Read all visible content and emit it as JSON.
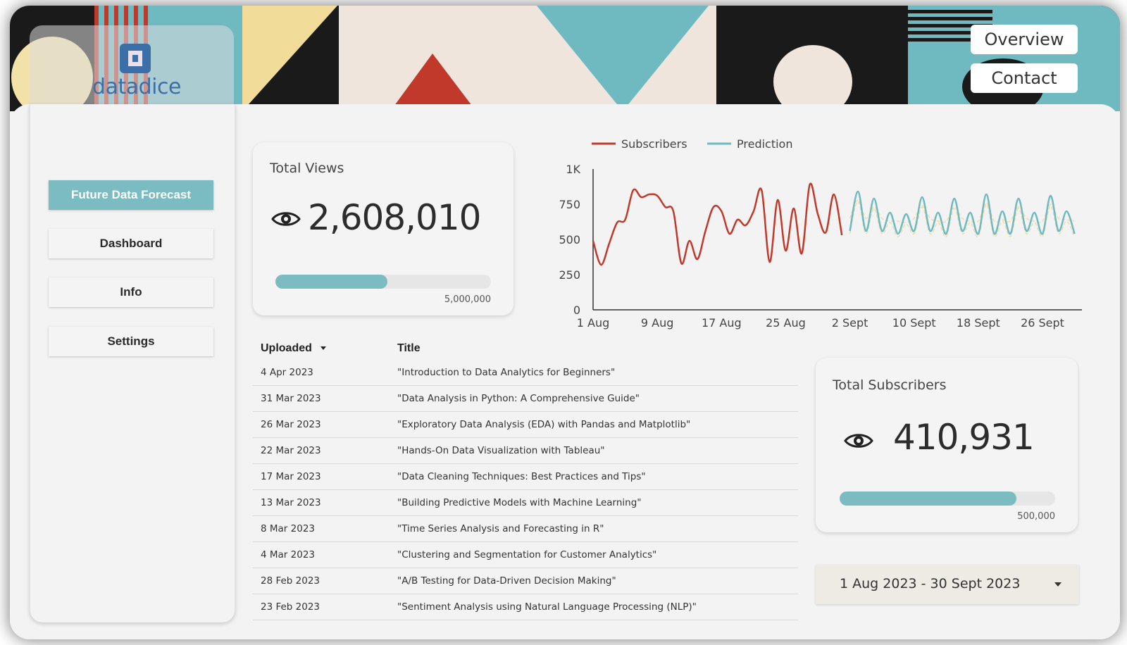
{
  "brand": {
    "logo_text": "datadice"
  },
  "header": {
    "overview_label": "Overview",
    "contact_label": "Contact"
  },
  "sidebar": {
    "items": [
      {
        "label": "Future Data Forecast",
        "active": true
      },
      {
        "label": "Dashboard",
        "active": false
      },
      {
        "label": "Info",
        "active": false
      },
      {
        "label": "Settings",
        "active": false
      }
    ]
  },
  "total_views": {
    "title": "Total Views",
    "value": "2,608,010",
    "max_label": "5,000,000",
    "progress_fraction": 0.52,
    "icon": "eye-icon"
  },
  "total_subscribers": {
    "title": "Total Subscribers",
    "value": "410,931",
    "max_label": "500,000",
    "progress_fraction": 0.82,
    "icon": "eye-icon"
  },
  "table": {
    "columns": [
      "Uploaded",
      "Title"
    ],
    "sort_icon": "caret-down-icon",
    "rows": [
      [
        "4 Apr 2023",
        "\"Introduction to Data Analytics for Beginners\""
      ],
      [
        "31 Mar 2023",
        "\"Data Analysis in Python: A Comprehensive Guide\""
      ],
      [
        "26 Mar 2023",
        "\"Exploratory Data Analysis (EDA) with Pandas and Matplotlib\""
      ],
      [
        "22 Mar 2023",
        "\"Hands-On Data Visualization with Tableau\""
      ],
      [
        "17 Mar 2023",
        "\"Data Cleaning Techniques: Best Practices and Tips\""
      ],
      [
        "13 Mar 2023",
        "\"Building Predictive Models with Machine Learning\""
      ],
      [
        "8 Mar 2023",
        "\"Time Series Analysis and Forecasting in R\""
      ],
      [
        "4 Mar 2023",
        "\"Clustering and Segmentation for Customer Analytics\""
      ],
      [
        "28 Feb 2023",
        "\"A/B Testing for Data-Driven Decision Making\""
      ],
      [
        "23 Feb 2023",
        "\"Sentiment Analysis using Natural Language Processing (NLP)\""
      ]
    ]
  },
  "date_range": {
    "label": "1 Aug 2023 - 30 Sept 2023"
  },
  "colors": {
    "accent": "#7bbcc2",
    "subscribers_line": "#c0392b",
    "prediction_line": "#6fb9c0",
    "prediction_band": "#f0d9a0"
  },
  "chart_data": {
    "type": "line",
    "x_tick_labels": [
      "1 Aug",
      "9 Aug",
      "17 Aug",
      "25 Aug",
      "2 Sept",
      "10 Sept",
      "18 Sept",
      "26 Sept"
    ],
    "y_tick_labels": [
      "0",
      "250",
      "500",
      "750",
      "1K"
    ],
    "ylim": [
      0,
      1000
    ],
    "x_start": "2023-08-01",
    "x_end": "2023-09-30",
    "legend_position": "top-left",
    "grid": false,
    "series": [
      {
        "name": "Subscribers",
        "x": [
          "2023-08-01",
          "2023-08-02",
          "2023-08-03",
          "2023-08-04",
          "2023-08-05",
          "2023-08-06",
          "2023-08-07",
          "2023-08-08",
          "2023-08-09",
          "2023-08-10",
          "2023-08-11",
          "2023-08-12",
          "2023-08-13",
          "2023-08-14",
          "2023-08-15",
          "2023-08-16",
          "2023-08-17",
          "2023-08-18",
          "2023-08-19",
          "2023-08-20",
          "2023-08-21",
          "2023-08-22",
          "2023-08-23",
          "2023-08-24",
          "2023-08-25",
          "2023-08-26",
          "2023-08-27",
          "2023-08-28",
          "2023-08-29",
          "2023-08-30",
          "2023-08-31",
          "2023-09-01"
        ],
        "values": [
          490,
          320,
          470,
          620,
          640,
          850,
          800,
          820,
          810,
          730,
          700,
          330,
          490,
          360,
          560,
          730,
          700,
          540,
          640,
          600,
          700,
          850,
          340,
          780,
          420,
          720,
          400,
          890,
          680,
          550,
          820,
          530
        ]
      },
      {
        "name": "Prediction",
        "x": [
          "2023-09-02",
          "2023-09-03",
          "2023-09-04",
          "2023-09-05",
          "2023-09-06",
          "2023-09-07",
          "2023-09-08",
          "2023-09-09",
          "2023-09-10",
          "2023-09-11",
          "2023-09-12",
          "2023-09-13",
          "2023-09-14",
          "2023-09-15",
          "2023-09-16",
          "2023-09-17",
          "2023-09-18",
          "2023-09-19",
          "2023-09-20",
          "2023-09-21",
          "2023-09-22",
          "2023-09-23",
          "2023-09-24",
          "2023-09-25",
          "2023-09-26",
          "2023-09-27",
          "2023-09-28",
          "2023-09-29",
          "2023-09-30"
        ],
        "values": [
          560,
          840,
          560,
          790,
          560,
          690,
          540,
          680,
          560,
          800,
          560,
          690,
          540,
          790,
          560,
          690,
          540,
          820,
          540,
          700,
          540,
          790,
          560,
          690,
          540,
          810,
          560,
          700,
          540
        ]
      }
    ]
  }
}
